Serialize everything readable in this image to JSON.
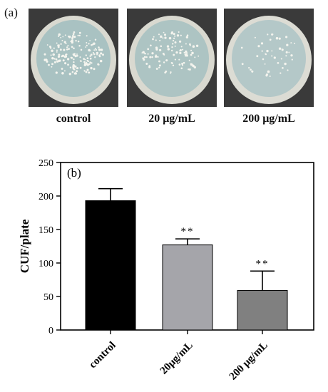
{
  "panel_a": {
    "label": "(a)",
    "plates": [
      {
        "caption": "control",
        "colony_density": "high"
      },
      {
        "caption": "20 μg/mL",
        "colony_density": "medium"
      },
      {
        "caption": "200 μg/mL",
        "colony_density": "low"
      }
    ]
  },
  "chart_data": {
    "type": "bar",
    "panel_label": "(b)",
    "categories": [
      "control",
      "20μg/mL",
      "200 μg/mL"
    ],
    "values": [
      193,
      127,
      59
    ],
    "error": [
      18,
      9,
      29
    ],
    "significance": [
      "",
      "**",
      "**"
    ],
    "ylabel": "CUF/plate",
    "xlabel": "",
    "ylim": [
      0,
      250
    ],
    "yticks": [
      0,
      50,
      100,
      150,
      200,
      250
    ],
    "colors": [
      "#000000",
      "#a5a5aa",
      "#808080"
    ],
    "grid": false
  }
}
